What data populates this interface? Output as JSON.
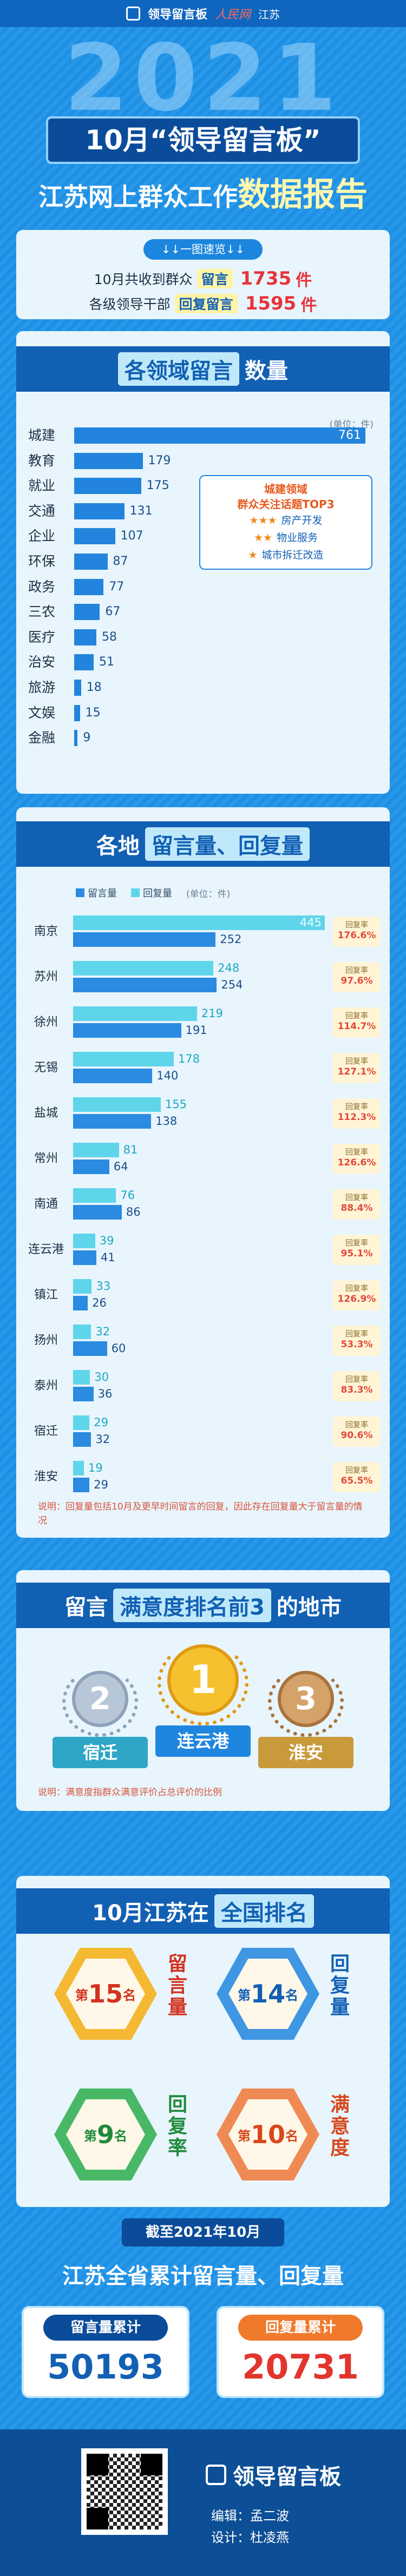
{
  "header": {
    "logo": "领导留言板",
    "brand": "人民网",
    "region": "江苏"
  },
  "year": "2021",
  "title": "10月“领导留言板”",
  "subtitle_a": "江苏网上群众工作",
  "subtitle_b": "数据报告",
  "quick": "↓↓一图速览↓↓",
  "summary": [
    {
      "prefix": "10月共收到群众",
      "key": "留言",
      "value": 1735,
      "unit": "件"
    },
    {
      "prefix": "各级领导干部",
      "key": "回复留言",
      "value": 1595,
      "unit": "件"
    }
  ],
  "domains": {
    "title_key": "各领域留言",
    "title_rest": "数量",
    "unit": "(单位：件)",
    "categories": [
      "城建",
      "教育",
      "就业",
      "交通",
      "企业",
      "环保",
      "政务",
      "三农",
      "医疗",
      "治安",
      "旅游",
      "文娱",
      "金融"
    ],
    "values": [
      761,
      179,
      175,
      131,
      107,
      87,
      77,
      67,
      58,
      51,
      18,
      15,
      9
    ],
    "color": "#2284dc"
  },
  "top3": {
    "title": [
      "城建领域",
      "群众关注话题TOP3"
    ],
    "items": [
      {
        "stars": "★★★",
        "text": "房产开发"
      },
      {
        "stars": "★★",
        "text": "物业服务"
      },
      {
        "stars": "★",
        "text": "城市拆迁改造"
      }
    ]
  },
  "cities": {
    "title_a": "各地",
    "title_key": "留言量、回复量",
    "unit": "(单位：件)",
    "categories": [
      "南京",
      "苏州",
      "徐州",
      "无锡",
      "盐城",
      "常州",
      "南通",
      "连云港",
      "镇江",
      "扬州",
      "泰州",
      "宿迁",
      "淮安"
    ],
    "series": [
      {
        "name": "留言量",
        "color": "#2a8be0",
        "values": [
          252,
          254,
          191,
          140,
          138,
          64,
          86,
          41,
          26,
          60,
          36,
          32,
          29
        ]
      },
      {
        "name": "回复量",
        "color": "#5fd5ea",
        "values": [
          445,
          248,
          219,
          178,
          155,
          81,
          76,
          39,
          33,
          32,
          30,
          29,
          19
        ]
      }
    ],
    "rate_label": "回复率",
    "rates": [
      "176.6%",
      "97.6%",
      "114.7%",
      "127.1%",
      "112.3%",
      "126.6%",
      "88.4%",
      "95.1%",
      "126.9%",
      "53.3%",
      "83.3%",
      "90.6%",
      "65.5%"
    ],
    "note": "说明：回复量包括10月及更早时间留言的回复，因此存在回复量大于留言量的情况"
  },
  "satisfaction": {
    "title_a": "留言",
    "title_key": "满意度排名前3",
    "title_b": "的地市",
    "medals": [
      {
        "rank": "2",
        "city": "宿迁"
      },
      {
        "rank": "1",
        "city": "连云港"
      },
      {
        "rank": "3",
        "city": "淮安"
      }
    ],
    "note": "说明：满意度指群众满意评价占总评价的比例"
  },
  "national": {
    "title_a": "10月江苏在",
    "title_key": "全国排名",
    "items": [
      {
        "pre": "第",
        "rank": 15,
        "post": "名",
        "metric": "留言量"
      },
      {
        "pre": "第",
        "rank": 14,
        "post": "名",
        "metric": "回复量"
      },
      {
        "pre": "第",
        "rank": 9,
        "post": "名",
        "metric": "回复率"
      },
      {
        "pre": "第",
        "rank": 10,
        "post": "名",
        "metric": "满意度"
      }
    ]
  },
  "cumulative": {
    "date": "截至2021年10月",
    "title": "江苏全省累计留言量、回复量",
    "items": [
      {
        "label": "留言量累计",
        "value": 50193
      },
      {
        "label": "回复量累计",
        "value": 20731
      }
    ]
  },
  "footer": {
    "logo": "领导留言板",
    "editor": "编辑：孟二波",
    "designer": "设计：杜凌燕"
  }
}
